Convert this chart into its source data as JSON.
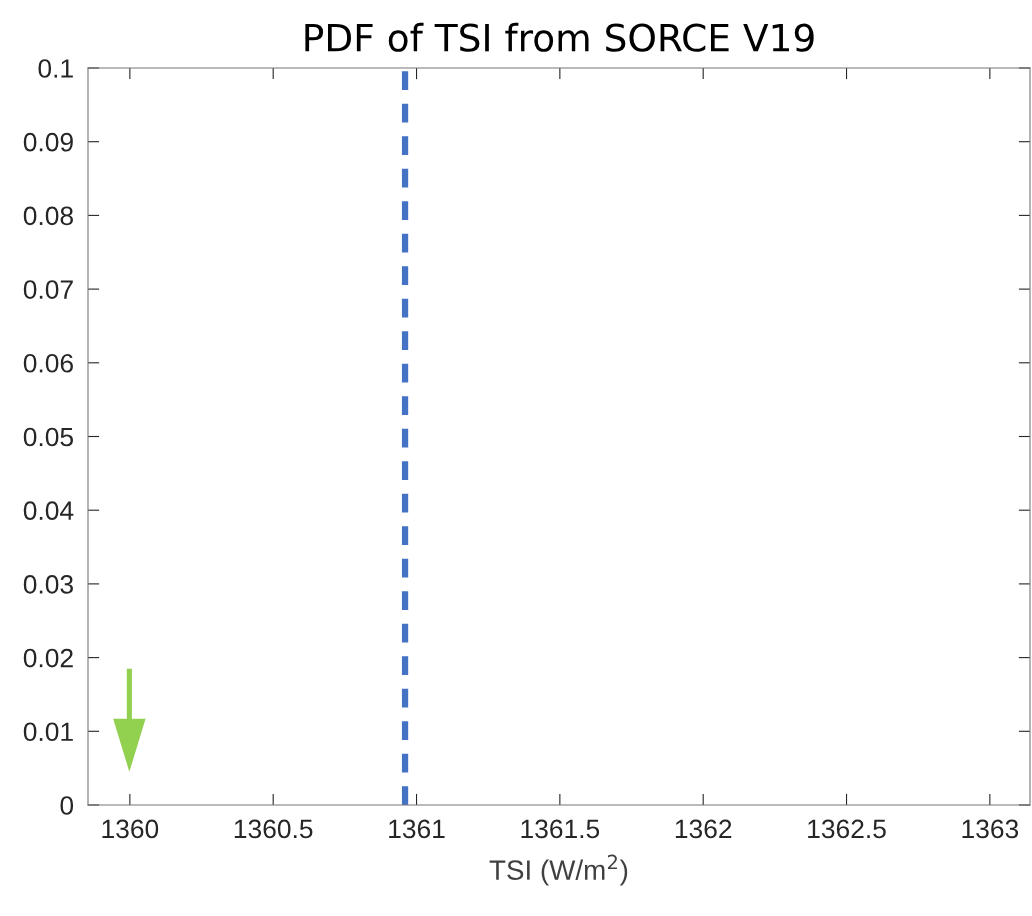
{
  "chart_data": {
    "type": "line",
    "title": "PDF of TSI from SORCE V19",
    "xlabel": "TSI (W/m$^{2}$)",
    "xlim": [
      1359.854,
      1363.14
    ],
    "xticks": [
      1360,
      1360.5,
      1361,
      1361.5,
      1362,
      1362.5,
      1363
    ],
    "ylim": [
      0,
      0.1
    ],
    "yticks": [
      0,
      0.01,
      0.02,
      0.03,
      0.04,
      0.05,
      0.06,
      0.07,
      0.08,
      0.09,
      0.1
    ],
    "ref_lines": [
      {
        "axis": "x",
        "value": 1360.96,
        "color": "#4472c4",
        "line_style": "dashed"
      }
    ],
    "grid": false,
    "legend": false
  }
}
